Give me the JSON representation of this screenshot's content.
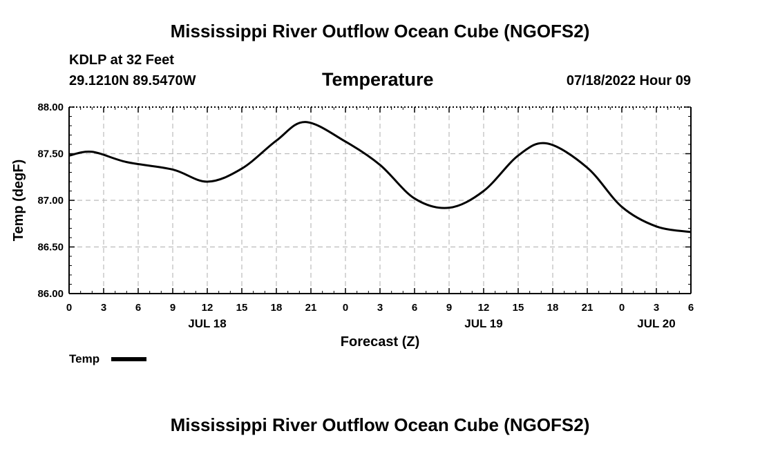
{
  "page": {
    "title_top": "Mississippi River Outflow Ocean Cube (NGOFS2)",
    "title_bottom": "Mississippi River Outflow Ocean Cube (NGOFS2)",
    "station": "KDLP at 32 Feet",
    "coords": "29.1210N  89.5470W",
    "timestamp": "07/18/2022 Hour 09"
  },
  "chart_data": {
    "type": "line",
    "title": "Temperature",
    "xlabel": "Forecast (Z)",
    "ylabel": "Temp (degF)",
    "ylim": [
      86.0,
      88.0
    ],
    "y_ticks": [
      "86.00",
      "86.50",
      "87.00",
      "87.50",
      "88.00"
    ],
    "xlim": [
      0,
      54
    ],
    "x_ticks": [
      "0",
      "3",
      "6",
      "9",
      "12",
      "15",
      "18",
      "21",
      "0",
      "3",
      "6",
      "9",
      "12",
      "15",
      "18",
      "21",
      "0",
      "3",
      "6"
    ],
    "day_labels": [
      {
        "label": "JUL 18",
        "hour": 12
      },
      {
        "label": "JUL 19",
        "hour": 36
      },
      {
        "label": "JUL 20",
        "hour": 51
      }
    ],
    "grid": true,
    "legend": "bottom-left",
    "series": [
      {
        "name": "Temp",
        "color": "#000000",
        "x": [
          0,
          2,
          5,
          9,
          12,
          15,
          18,
          20.5,
          24,
          27,
          30,
          33,
          36,
          39,
          41.5,
          45,
          48,
          51,
          54
        ],
        "y": [
          87.48,
          87.52,
          87.41,
          87.33,
          87.2,
          87.34,
          87.64,
          87.84,
          87.63,
          87.38,
          87.02,
          86.92,
          87.1,
          87.48,
          87.61,
          87.35,
          86.93,
          86.72,
          86.66
        ]
      }
    ]
  }
}
